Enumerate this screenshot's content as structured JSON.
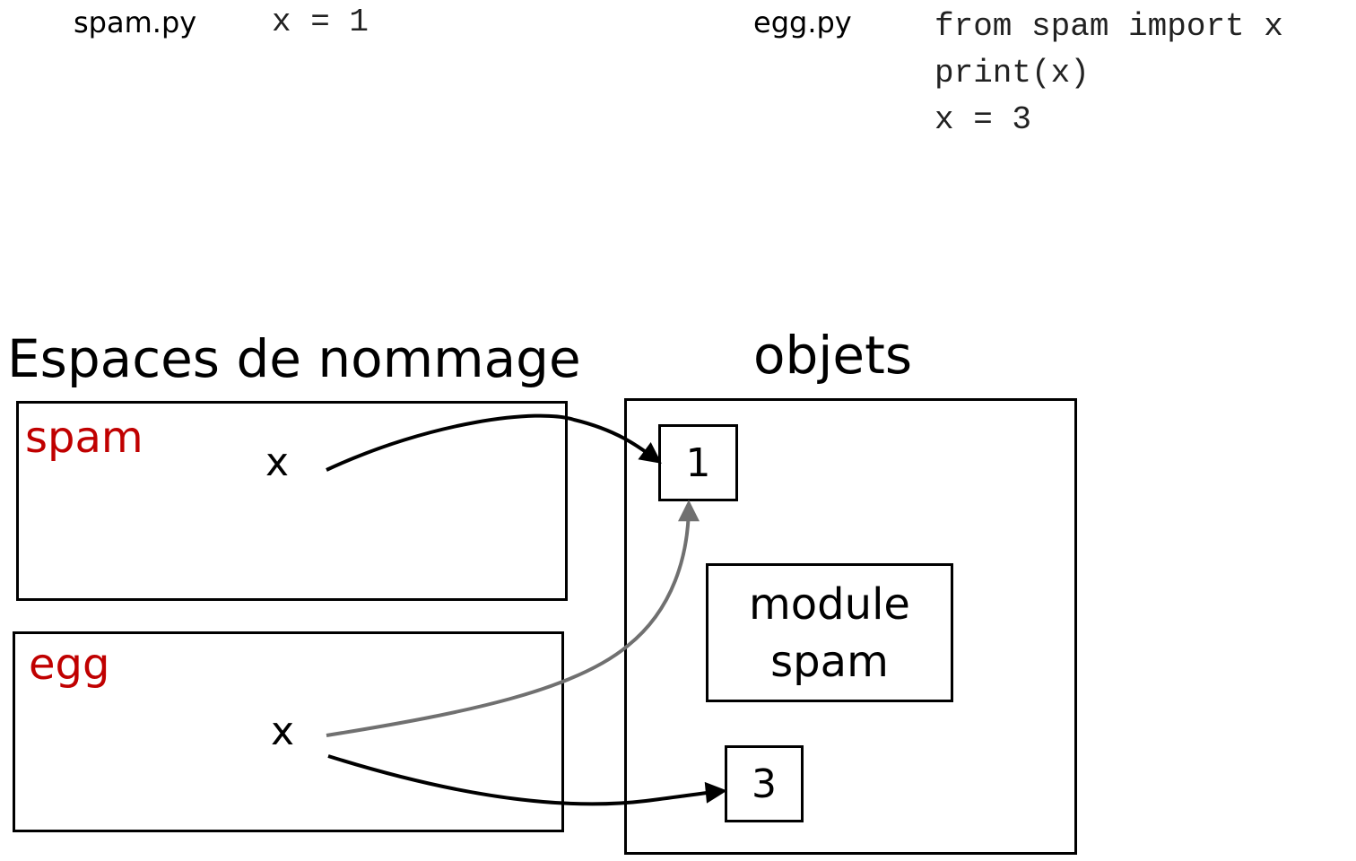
{
  "files": {
    "spam": {
      "name": "spam.py",
      "code": [
        "x = 1"
      ]
    },
    "egg": {
      "name": "egg.py",
      "code": [
        "from spam import x",
        "print(x)",
        "x = 3"
      ]
    }
  },
  "namespaces": {
    "title": "Espaces de nommage",
    "spam": {
      "label": "spam",
      "var": "x"
    },
    "egg": {
      "label": "egg",
      "var": "x"
    }
  },
  "objects": {
    "title": "objets",
    "one": "1",
    "three": "3",
    "module": {
      "line1": "module",
      "line2": "spam"
    }
  },
  "colors": {
    "namespace_label": "#c00000",
    "current_ref": "#000000",
    "old_ref": "#707070"
  }
}
